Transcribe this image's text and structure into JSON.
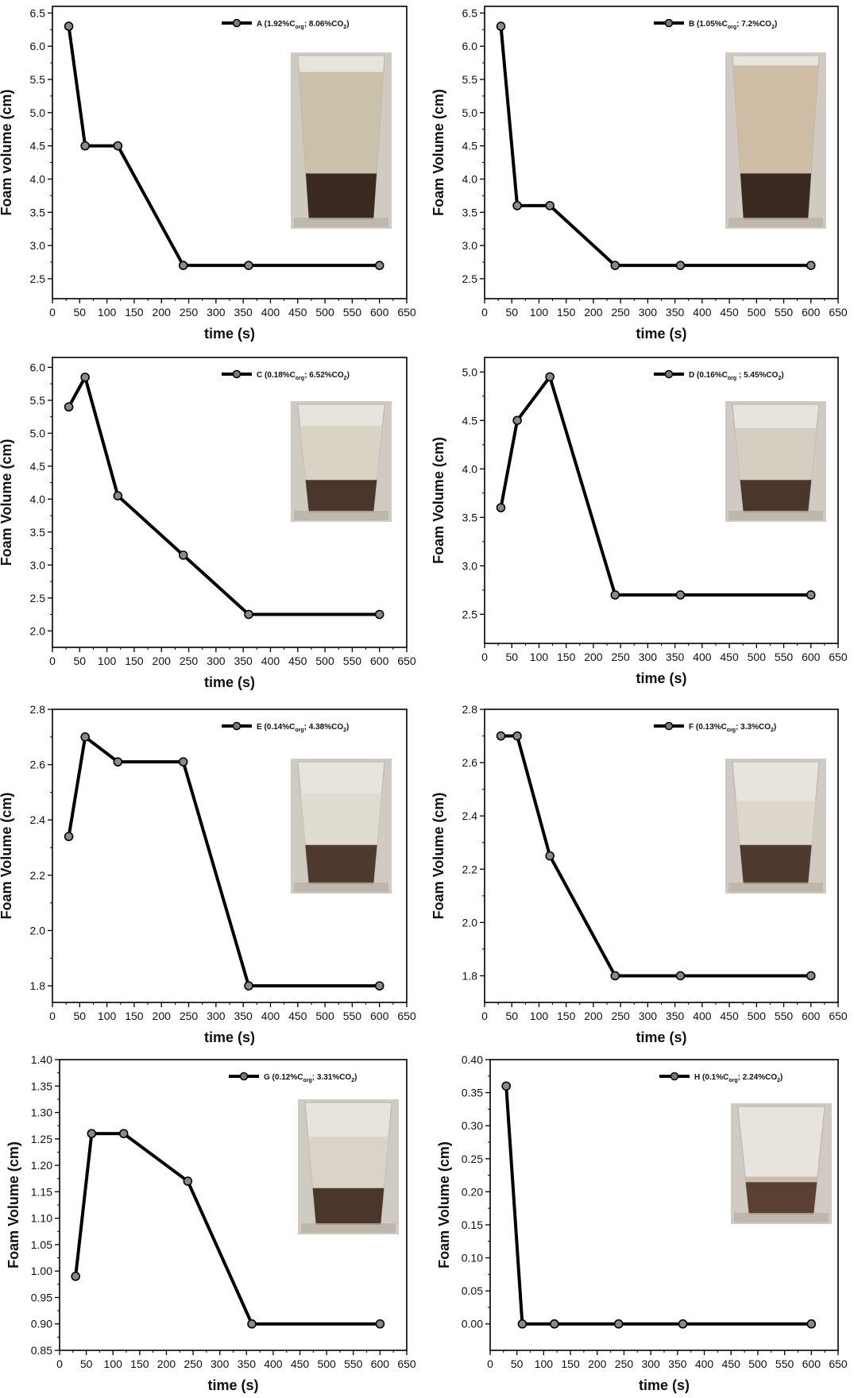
{
  "chart_data": [
    {
      "id": "A",
      "type": "line",
      "legend": {
        "prefix": "A (1.92%C",
        "sub": "org",
        "mid": "; 8.06%CO",
        "sub2": "2",
        "suffix": ")"
      },
      "xlabel": "time (s)",
      "ylabel": "Foam volume (cm)",
      "xlim": [
        0,
        650
      ],
      "ylim": [
        2.2,
        6.6
      ],
      "xticks": [
        0,
        50,
        100,
        150,
        200,
        250,
        300,
        350,
        400,
        450,
        500,
        550,
        600,
        650
      ],
      "yticks": [
        "2.5",
        "3.0",
        "3.5",
        "4.0",
        "4.5",
        "5.0",
        "5.5",
        "6.0",
        "6.5"
      ],
      "series": [
        {
          "x": [
            30,
            60,
            120,
            240,
            360,
            600
          ],
          "y": [
            6.3,
            4.5,
            4.5,
            2.7,
            2.7,
            2.7
          ]
        }
      ],
      "photo": {
        "foam_fraction": 0.62,
        "liquid_fraction": 0.28,
        "foam_color": "#c8bfa6",
        "liquid_color": "#3a2a22"
      }
    },
    {
      "id": "B",
      "type": "line",
      "legend": {
        "prefix": "B (1.05%C",
        "sub": "org",
        "mid": "; 7.2%CO",
        "sub2": "2",
        "suffix": ")"
      },
      "xlabel": "time (s)",
      "ylabel": "Foam Volume (cm)",
      "xlim": [
        0,
        650
      ],
      "ylim": [
        2.2,
        6.6
      ],
      "xticks": [
        0,
        50,
        100,
        150,
        200,
        250,
        300,
        350,
        400,
        450,
        500,
        550,
        600,
        650
      ],
      "yticks": [
        "2.5",
        "3.0",
        "3.5",
        "4.0",
        "4.5",
        "5.0",
        "5.5",
        "6.0",
        "6.5"
      ],
      "series": [
        {
          "x": [
            30,
            60,
            120,
            240,
            360,
            600
          ],
          "y": [
            6.3,
            3.6,
            3.6,
            2.7,
            2.7,
            2.7
          ]
        }
      ],
      "photo": {
        "foam_fraction": 0.66,
        "liquid_fraction": 0.28,
        "foam_color": "#cdb9a0",
        "liquid_color": "#3a2a22"
      }
    },
    {
      "id": "C",
      "type": "line",
      "legend": {
        "prefix": "C (0.18%C",
        "sub": "org",
        "mid": "; 6.52%CO",
        "sub2": "2",
        "suffix": ")"
      },
      "xlabel": "time (s)",
      "ylabel": "Foam Volume (cm)",
      "xlim": [
        0,
        650
      ],
      "ylim": [
        1.75,
        6.15
      ],
      "xticks": [
        0,
        50,
        100,
        150,
        200,
        250,
        300,
        350,
        400,
        450,
        500,
        550,
        600,
        650
      ],
      "yticks": [
        "2.0",
        "2.5",
        "3.0",
        "3.5",
        "4.0",
        "4.5",
        "5.0",
        "5.5",
        "6.0"
      ],
      "series": [
        {
          "x": [
            30,
            60,
            120,
            240,
            360,
            600
          ],
          "y": [
            5.4,
            5.85,
            4.05,
            3.15,
            2.25,
            2.25
          ]
        }
      ],
      "photo": {
        "foam_fraction": 0.5,
        "liquid_fraction": 0.3,
        "foam_color": "#d8d2c4",
        "liquid_color": "#4a362b"
      }
    },
    {
      "id": "D",
      "type": "line",
      "legend": {
        "prefix": "D (0.16%C",
        "sub": "org",
        "mid": " ; 5.45%CO",
        "sub2": "2",
        "suffix": ")"
      },
      "xlabel": "time (s)",
      "ylabel": "Foam Volume (cm)",
      "xlim": [
        0,
        650
      ],
      "ylim": [
        2.2,
        5.15
      ],
      "xticks": [
        0,
        50,
        100,
        150,
        200,
        250,
        300,
        350,
        400,
        450,
        500,
        550,
        600,
        650
      ],
      "yticks": [
        "2.5",
        "3.0",
        "3.5",
        "4.0",
        "4.5",
        "5.0"
      ],
      "series": [
        {
          "x": [
            30,
            60,
            120,
            240,
            360,
            600
          ],
          "y": [
            3.6,
            4.5,
            4.95,
            2.7,
            2.7,
            2.7
          ]
        }
      ],
      "photo": {
        "foam_fraction": 0.48,
        "liquid_fraction": 0.3,
        "foam_color": "#d3ccbe",
        "liquid_color": "#4a362b"
      }
    },
    {
      "id": "E",
      "type": "line",
      "legend": {
        "prefix": "E (0.14%C",
        "sub": "org",
        "mid": "; 4.38%CO",
        "sub2": "2",
        "suffix": ")"
      },
      "xlabel": "time (s)",
      "ylabel": "Foam Volume (cm)",
      "xlim": [
        0,
        650
      ],
      "ylim": [
        1.74,
        2.8
      ],
      "xticks": [
        0,
        50,
        100,
        150,
        200,
        250,
        300,
        350,
        400,
        450,
        500,
        550,
        600,
        650
      ],
      "yticks": [
        "1.8",
        "2.0",
        "2.2",
        "2.4",
        "2.6",
        "2.8"
      ],
      "series": [
        {
          "x": [
            30,
            60,
            120,
            240,
            360,
            600
          ],
          "y": [
            2.34,
            2.7,
            2.61,
            2.61,
            1.8,
            1.8
          ]
        }
      ],
      "photo": {
        "foam_fraction": 0.42,
        "liquid_fraction": 0.32,
        "foam_color": "#dedad0",
        "liquid_color": "#4e3a2e"
      }
    },
    {
      "id": "F",
      "type": "line",
      "legend": {
        "prefix": "F (0.13%C",
        "sub": "org",
        "mid": "; 3.3%CO",
        "sub2": "2",
        "suffix": ")"
      },
      "xlabel": "time (s)",
      "ylabel": "Foam Volume (cm)",
      "xlim": [
        0,
        650
      ],
      "ylim": [
        1.7,
        2.8
      ],
      "xticks": [
        0,
        50,
        100,
        150,
        200,
        250,
        300,
        350,
        400,
        450,
        500,
        550,
        600,
        650
      ],
      "yticks": [
        "1.8",
        "2.0",
        "2.2",
        "2.4",
        "2.6",
        "2.8"
      ],
      "series": [
        {
          "x": [
            30,
            60,
            120,
            240,
            360,
            600
          ],
          "y": [
            2.7,
            2.7,
            2.25,
            1.8,
            1.8,
            1.8
          ]
        }
      ],
      "photo": {
        "foam_fraction": 0.36,
        "liquid_fraction": 0.32,
        "foam_color": "#dcd6ca",
        "liquid_color": "#4e3a2e"
      }
    },
    {
      "id": "G",
      "type": "line",
      "legend": {
        "prefix": "G (0.12%C",
        "sub": "org",
        "mid": "; 3.31%CO",
        "sub2": "2",
        "suffix": ")"
      },
      "xlabel": "time (s)",
      "ylabel": "Foam Volume (cm)",
      "xlim": [
        0,
        650
      ],
      "ylim": [
        0.85,
        1.4
      ],
      "xticks": [
        0,
        50,
        100,
        150,
        200,
        250,
        300,
        350,
        400,
        450,
        500,
        550,
        600,
        650
      ],
      "yticks": [
        "0.85",
        "0.90",
        "0.95",
        "1.00",
        "1.05",
        "1.10",
        "1.15",
        "1.20",
        "1.25",
        "1.30",
        "1.35",
        "1.40"
      ],
      "series": [
        {
          "x": [
            30,
            60,
            120,
            240,
            360,
            600
          ],
          "y": [
            0.99,
            1.26,
            1.26,
            1.17,
            0.9,
            0.9
          ]
        }
      ],
      "photo": {
        "foam_fraction": 0.42,
        "liquid_fraction": 0.3,
        "foam_color": "#d8d2c6",
        "liquid_color": "#4a362b"
      }
    },
    {
      "id": "H",
      "type": "line",
      "legend": {
        "prefix": "H (0.1%C",
        "sub": "org",
        "mid": "; 2.24%CO",
        "sub2": "2",
        "suffix": ")"
      },
      "xlabel": "time (s)",
      "ylabel": "Foam Volume (cm)",
      "xlim": [
        0,
        650
      ],
      "ylim": [
        -0.04,
        0.4
      ],
      "xticks": [
        0,
        50,
        100,
        150,
        200,
        250,
        300,
        350,
        400,
        450,
        500,
        550,
        600,
        650
      ],
      "yticks": [
        "0.00",
        "0.05",
        "0.10",
        "0.15",
        "0.20",
        "0.25",
        "0.30",
        "0.35",
        "0.40"
      ],
      "series": [
        {
          "x": [
            30,
            60,
            120,
            240,
            360,
            600
          ],
          "y": [
            0.36,
            0.0,
            0.0,
            0.0,
            0.0,
            0.0
          ]
        }
      ],
      "photo": {
        "foam_fraction": 0.05,
        "liquid_fraction": 0.3,
        "foam_color": "#c9b9a4",
        "liquid_color": "#5a4033"
      }
    }
  ]
}
